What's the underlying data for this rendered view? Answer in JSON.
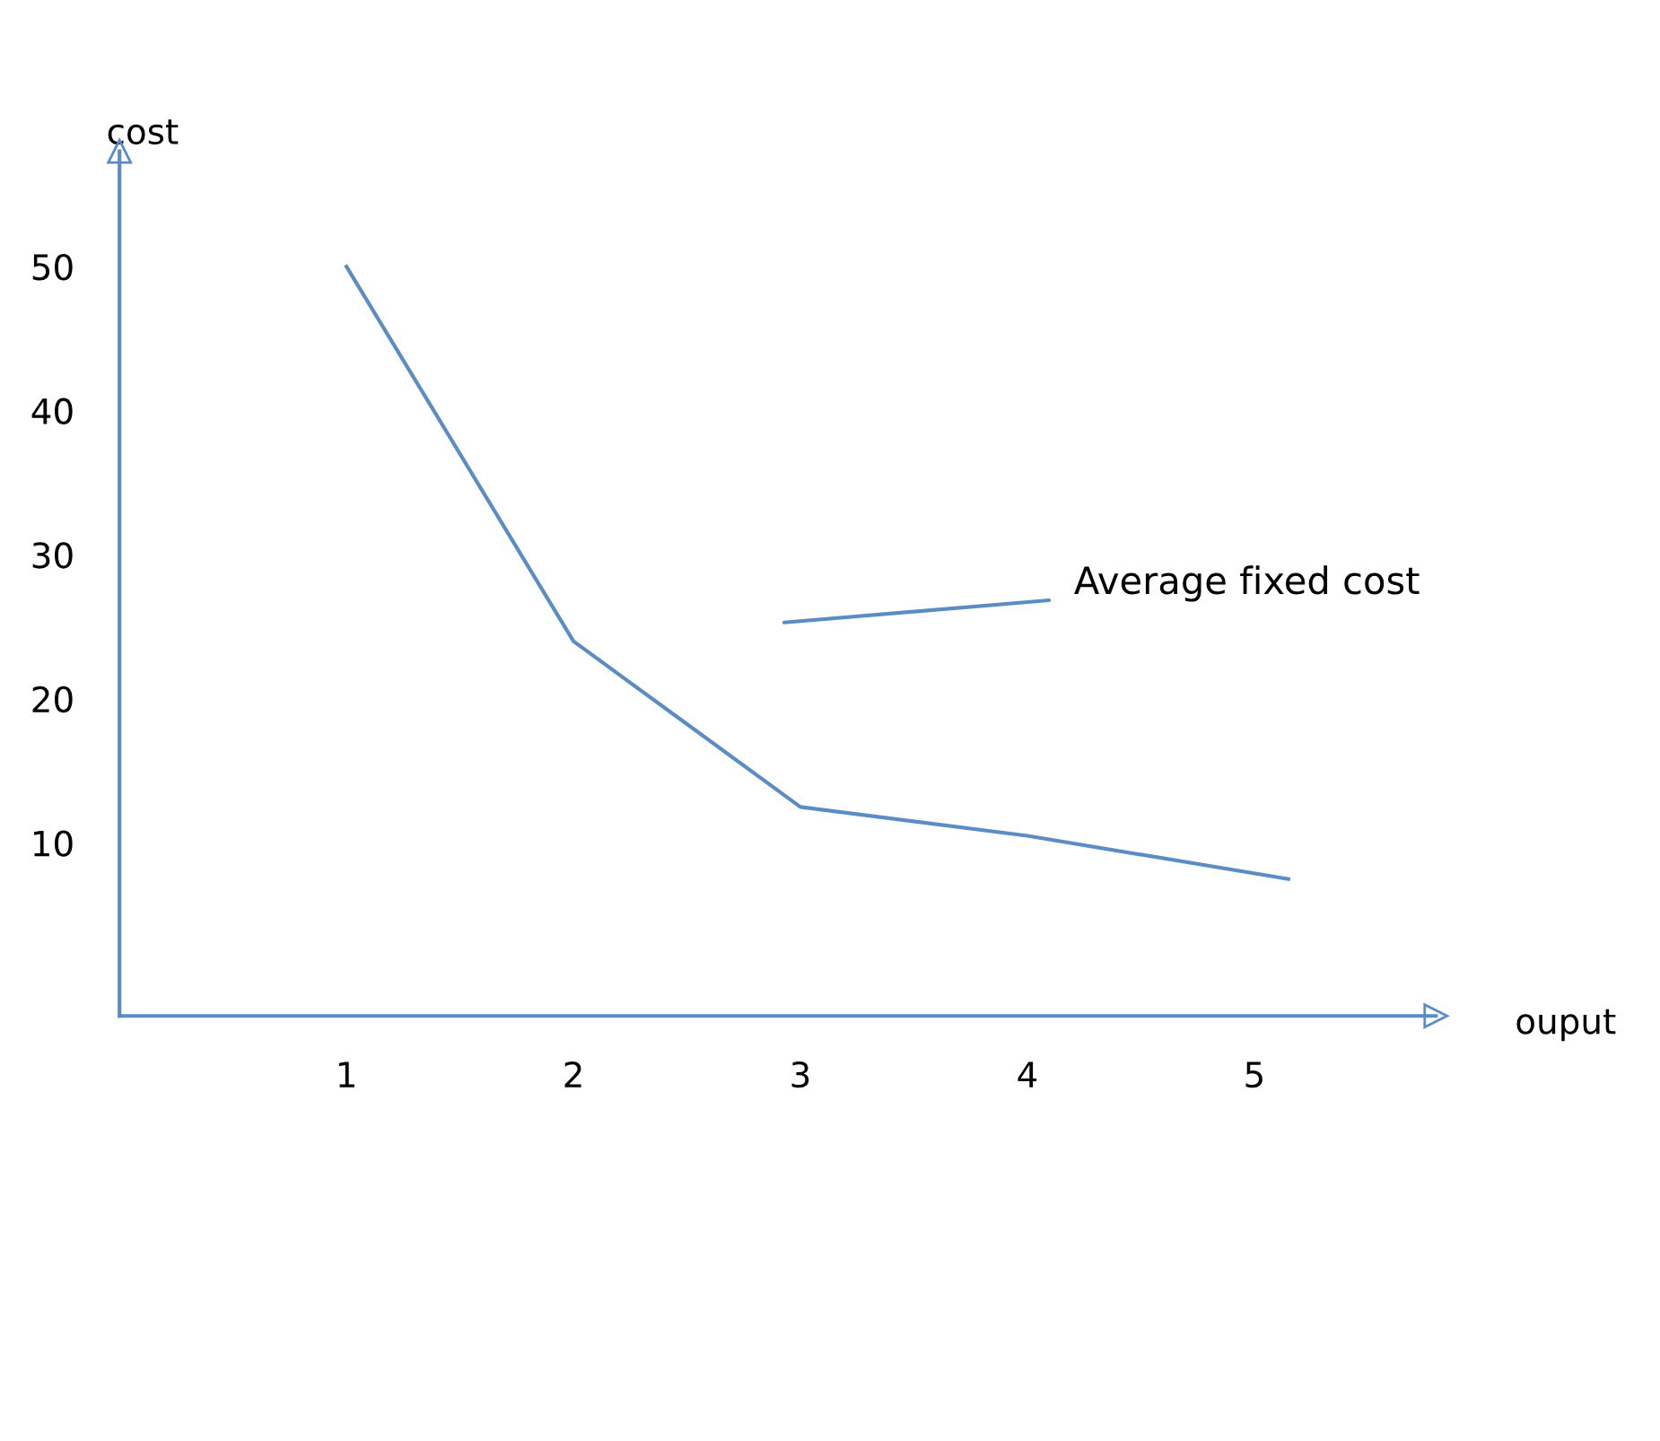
{
  "chart_data": {
    "type": "line",
    "xlabel": "ouput",
    "ylabel": "cost",
    "x": [
      1,
      2,
      3,
      4,
      5.15
    ],
    "series": [
      {
        "color": "#5b8cc4",
        "values": [
          50,
          24,
          12.5,
          10.5,
          7.5
        ]
      }
    ],
    "xlim": [
      0,
      5.8
    ],
    "ylim": [
      -2,
      58
    ],
    "xticks": [
      1,
      2,
      3,
      4,
      5
    ],
    "yticks": [
      10,
      20,
      30,
      40,
      50
    ],
    "grid": false,
    "legend": false,
    "marker": "none",
    "line_style": "solid",
    "annotations": [
      "Average fixed cost"
    ]
  }
}
